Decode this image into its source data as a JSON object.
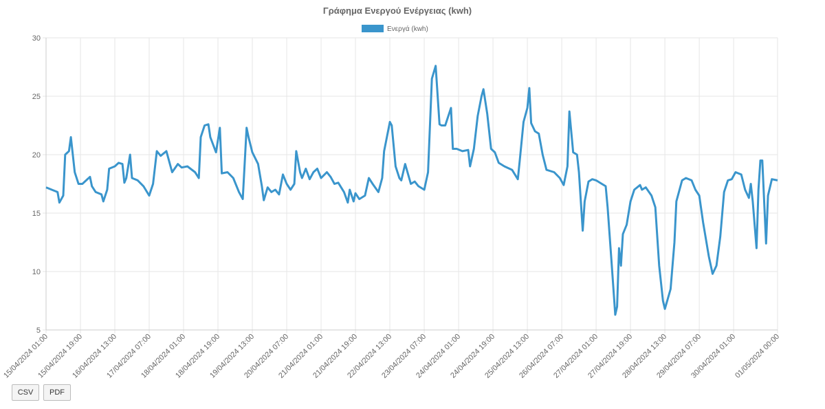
{
  "chart_data": {
    "type": "line",
    "title": "Γράφημα Ενεργού Ενέργειας (kwh)",
    "x": [
      0,
      3,
      6,
      7,
      9,
      10,
      12,
      13,
      15,
      17,
      19,
      23,
      24,
      26,
      29,
      30,
      32,
      33,
      36,
      38,
      40,
      41,
      42,
      44,
      45,
      48,
      51,
      54,
      56,
      58,
      60,
      63,
      66,
      69,
      71,
      74,
      78,
      80,
      81,
      83,
      85,
      86,
      89,
      91,
      92,
      95,
      98,
      101,
      103,
      105,
      106,
      108,
      111,
      113,
      114,
      116,
      118,
      120,
      122,
      124,
      126,
      128,
      130,
      131,
      133,
      134,
      136,
      138,
      140,
      142,
      144,
      147,
      149,
      151,
      153,
      156,
      158,
      159,
      161,
      162,
      164,
      167,
      169,
      171,
      174,
      176,
      177,
      180,
      181,
      183,
      185,
      186,
      188,
      191,
      193,
      195,
      198,
      200,
      202,
      204,
      206,
      207,
      209,
      212,
      213,
      215,
      218,
      221,
      222,
      224,
      226,
      228,
      229,
      231,
      233,
      235,
      237,
      240,
      244,
      247,
      248,
      250,
      252,
      253,
      254,
      256,
      258,
      260,
      262,
      266,
      269,
      271,
      273,
      274,
      276,
      278,
      279,
      281,
      282,
      284,
      286,
      288,
      291,
      293,
      294,
      296,
      298,
      299,
      300,
      301,
      302,
      304,
      306,
      308,
      311,
      312,
      314,
      317,
      319,
      321,
      323,
      324,
      327,
      329,
      330,
      333,
      335,
      338,
      340,
      342,
      344,
      347,
      349,
      351,
      353,
      355,
      357,
      359,
      361,
      364,
      366,
      368,
      369,
      370,
      372,
      373,
      374,
      375,
      377,
      378,
      380,
      383
    ],
    "series": [
      {
        "name": "Ενεργά (kwh)",
        "color": "#3a95cc",
        "values": [
          17.2,
          17.0,
          16.8,
          15.9,
          16.5,
          20.0,
          20.3,
          21.5,
          18.5,
          17.5,
          17.5,
          18.1,
          17.3,
          16.8,
          16.6,
          16.0,
          17.0,
          18.8,
          19.0,
          19.3,
          19.2,
          17.6,
          18.0,
          20.0,
          18.0,
          17.8,
          17.3,
          16.5,
          17.5,
          20.3,
          19.9,
          20.3,
          18.5,
          19.2,
          18.9,
          19.0,
          18.5,
          18.0,
          21.5,
          22.5,
          22.6,
          21.5,
          20.2,
          22.3,
          18.4,
          18.5,
          18.0,
          16.8,
          16.2,
          22.3,
          21.5,
          20.2,
          19.2,
          17.3,
          16.1,
          17.2,
          16.8,
          17.0,
          16.6,
          18.3,
          17.5,
          17.0,
          17.5,
          20.3,
          18.5,
          18.0,
          18.8,
          17.9,
          18.5,
          18.8,
          18.0,
          18.5,
          18.1,
          17.5,
          17.6,
          16.8,
          15.9,
          17.0,
          16.0,
          16.7,
          16.2,
          16.5,
          18.0,
          17.5,
          16.8,
          18.0,
          20.3,
          22.8,
          22.5,
          19.0,
          18.0,
          17.8,
          19.2,
          17.5,
          17.7,
          17.3,
          17.0,
          18.5,
          26.5,
          27.6,
          22.6,
          22.5,
          22.5,
          24.0,
          20.5,
          20.5,
          20.3,
          20.4,
          19.0,
          20.5,
          23.3,
          25.0,
          25.6,
          23.5,
          20.5,
          20.2,
          19.3,
          19.0,
          18.7,
          17.9,
          19.5,
          22.8,
          24.0,
          25.7,
          22.7,
          22.0,
          21.8,
          20.0,
          18.7,
          18.5,
          18.0,
          17.4,
          19.0,
          23.7,
          20.2,
          20.0,
          18.5,
          13.5,
          16.0,
          17.7,
          17.9,
          17.8,
          17.5,
          17.3,
          15.5,
          11.0,
          6.3,
          7.0,
          12.0,
          10.5,
          13.2,
          14.0,
          16.0,
          17.0,
          17.4,
          17.0,
          17.2,
          16.5,
          15.5,
          10.5,
          7.5,
          6.8,
          8.5,
          12.5,
          16.0,
          17.8,
          18.0,
          17.8,
          17.0,
          16.5,
          14.2,
          11.3,
          9.8,
          10.5,
          13.0,
          16.8,
          17.8,
          17.9,
          18.5,
          18.3,
          17.0,
          16.3,
          17.5,
          16.0,
          12.0,
          17.0,
          19.5,
          19.5,
          12.4,
          16.5,
          17.9,
          17.8
        ]
      }
    ],
    "xlim": [
      0,
      383
    ],
    "xticks": [
      {
        "value": 0,
        "label": "15/04/2024 01:00"
      },
      {
        "value": 18,
        "label": "15/04/2024 19:00"
      },
      {
        "value": 36,
        "label": "16/04/2024 13:00"
      },
      {
        "value": 54,
        "label": "17/04/2024 07:00"
      },
      {
        "value": 72,
        "label": "18/04/2024 01:00"
      },
      {
        "value": 90,
        "label": "18/04/2024 19:00"
      },
      {
        "value": 108,
        "label": "19/04/2024 13:00"
      },
      {
        "value": 126,
        "label": "20/04/2024 07:00"
      },
      {
        "value": 144,
        "label": "21/04/2024 01:00"
      },
      {
        "value": 162,
        "label": "21/04/2024 19:00"
      },
      {
        "value": 180,
        "label": "22/04/2024 13:00"
      },
      {
        "value": 198,
        "label": "23/04/2024 07:00"
      },
      {
        "value": 216,
        "label": "24/04/2024 01:00"
      },
      {
        "value": 234,
        "label": "24/04/2024 19:00"
      },
      {
        "value": 252,
        "label": "25/04/2024 13:00"
      },
      {
        "value": 270,
        "label": "26/04/2024 07:00"
      },
      {
        "value": 288,
        "label": "27/04/2024 01:00"
      },
      {
        "value": 306,
        "label": "27/04/2024 19:00"
      },
      {
        "value": 324,
        "label": "28/04/2024 13:00"
      },
      {
        "value": 342,
        "label": "29/04/2024 07:00"
      },
      {
        "value": 360,
        "label": "30/04/2024 01:00"
      },
      {
        "value": 383,
        "label": "01/05/2024 00:00"
      }
    ],
    "ylim": [
      5,
      30
    ],
    "yticks": [
      5,
      10,
      15,
      20,
      25,
      30
    ],
    "grid": true,
    "legend": "top"
  },
  "buttons": [
    "CSV",
    "PDF"
  ]
}
